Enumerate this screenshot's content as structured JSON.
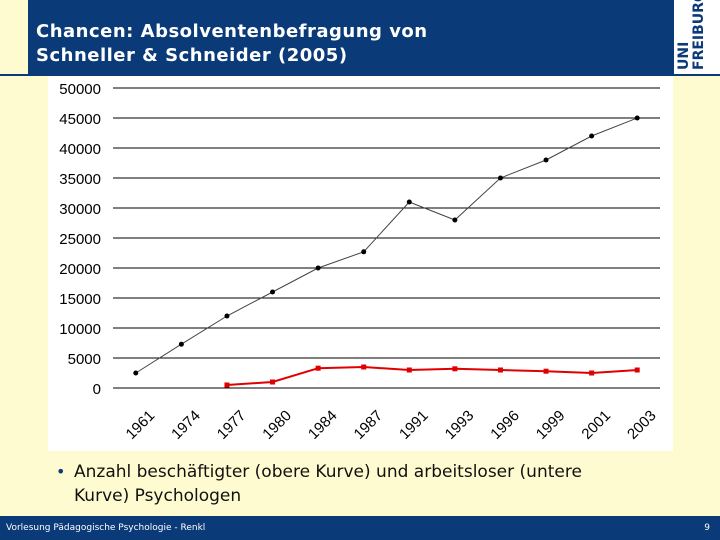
{
  "slide": {
    "title_line1": "Chancen: Absolventenbefragung von",
    "title_line2": "Schneller & Schneider (2005)",
    "logo_line1": "UNI",
    "logo_line2": "FREIBURG",
    "bullet_text": "Anzahl beschäftigter (obere Kurve) und arbeitsloser (untere Kurve) Psychologen",
    "footer_left": "Vorlesung Pädagogische Psychologie - Renkl",
    "footer_right": "9",
    "colors": {
      "header": "#0b3a78",
      "background": "#fffbd0",
      "employed_series": "#000000",
      "unemployed_series": "#e00000"
    }
  },
  "chart_data": {
    "type": "line",
    "title": "",
    "xlabel": "",
    "ylabel": "",
    "ylim": [
      0,
      50000
    ],
    "yticks": [
      0,
      5000,
      10000,
      15000,
      20000,
      25000,
      30000,
      35000,
      40000,
      45000,
      50000
    ],
    "categories": [
      "1961",
      "1974",
      "1977",
      "1980",
      "1984",
      "1987",
      "1991",
      "1993",
      "1996",
      "1999",
      "2001",
      "2003"
    ],
    "grid": true,
    "legend": "none",
    "series": [
      {
        "color": "#000000",
        "values": [
          2500,
          7300,
          12000,
          16000,
          20000,
          22700,
          31000,
          28000,
          35000,
          38000,
          42000,
          45000
        ]
      },
      {
        "color": "#e00000",
        "values": [
          null,
          null,
          500,
          1000,
          3300,
          3500,
          3000,
          3200,
          3000,
          2800,
          2500,
          3000
        ]
      }
    ]
  }
}
